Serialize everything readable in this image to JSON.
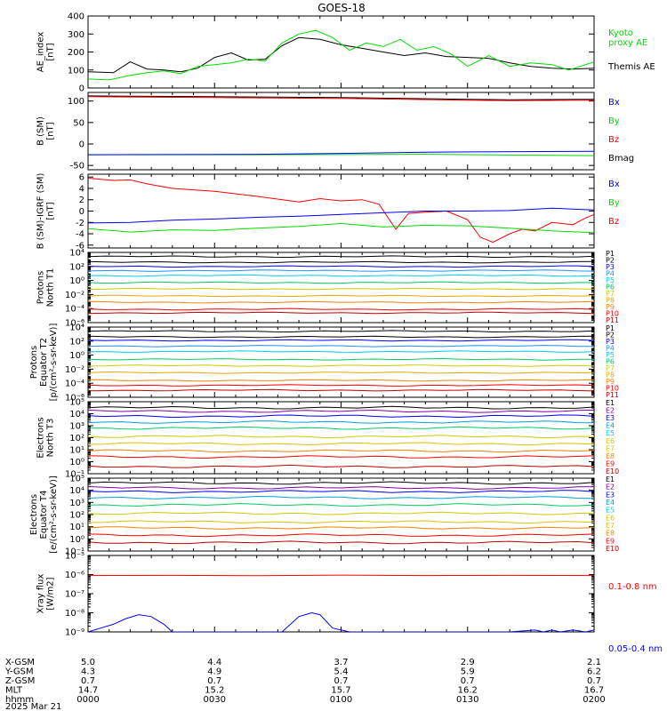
{
  "title": "GOES-18",
  "colors": {
    "black": "#000000",
    "red": "#ff0000",
    "green": "#00dd00",
    "blue": "#0000ff"
  },
  "chart_data": [
    {
      "id": "ae",
      "type": "line",
      "ylabel": [
        "AE_index",
        "[nT]"
      ],
      "ylim": [
        0,
        400
      ],
      "yticks": [
        0,
        100,
        200,
        300,
        400
      ],
      "legend": [
        {
          "text": "Kyoto",
          "color": "#00dd00"
        },
        {
          "text": "proxy AE",
          "color": "#00dd00"
        },
        {
          "text": "Themis AE",
          "color": "#000000"
        }
      ],
      "series": [
        {
          "name": "Themis AE",
          "color": "#000000",
          "x": [
            0,
            6,
            10,
            14,
            18,
            22,
            26,
            30,
            34,
            38,
            42,
            46,
            50,
            55,
            60,
            65,
            70,
            75,
            80,
            85,
            90,
            95,
            100,
            105,
            110,
            115,
            120
          ],
          "values": [
            90,
            85,
            145,
            105,
            100,
            90,
            110,
            170,
            195,
            155,
            160,
            235,
            280,
            270,
            240,
            220,
            200,
            180,
            195,
            175,
            170,
            165,
            140,
            120,
            110,
            105,
            110
          ]
        },
        {
          "name": "Kyoto proxy AE",
          "color": "#00dd00",
          "x": [
            0,
            5,
            10,
            14,
            18,
            22,
            26,
            30,
            34,
            38,
            42,
            46,
            50,
            54,
            58,
            62,
            66,
            70,
            74,
            78,
            82,
            86,
            90,
            95,
            100,
            105,
            110,
            114,
            120
          ],
          "values": [
            50,
            45,
            70,
            85,
            95,
            80,
            120,
            130,
            140,
            160,
            150,
            250,
            300,
            320,
            280,
            210,
            250,
            230,
            270,
            210,
            230,
            190,
            120,
            180,
            120,
            140,
            130,
            100,
            145
          ]
        }
      ]
    },
    {
      "id": "bsm",
      "type": "line",
      "ylabel": [
        "B (SM)",
        "[nT]"
      ],
      "ylim": [
        -60,
        120
      ],
      "yticks": [
        -50,
        0,
        50,
        100
      ],
      "legend": [
        {
          "text": "Bx",
          "color": "#0000ff"
        },
        {
          "text": "By",
          "color": "#00dd00"
        },
        {
          "text": "Bz",
          "color": "#ff0000"
        },
        {
          "text": "Bmag",
          "color": "#000000"
        }
      ],
      "series": [
        {
          "name": "Bmag",
          "color": "#000000",
          "x": [
            0,
            30,
            60,
            90,
            100,
            120
          ],
          "values": [
            112,
            110,
            108,
            104,
            103,
            104
          ]
        },
        {
          "name": "Bz",
          "color": "#ff0000",
          "x": [
            0,
            30,
            60,
            90,
            100,
            120
          ],
          "values": [
            110,
            108,
            106,
            102,
            101,
            102
          ]
        },
        {
          "name": "By",
          "color": "#00dd00",
          "x": [
            0,
            40,
            80,
            120
          ],
          "values": [
            -25,
            -25,
            -24,
            -27
          ]
        },
        {
          "name": "Bx",
          "color": "#0000ff",
          "x": [
            0,
            40,
            60,
            80,
            120
          ],
          "values": [
            -25,
            -24,
            -22,
            -19,
            -17
          ]
        }
      ]
    },
    {
      "id": "bdiff",
      "type": "line",
      "ylabel": [
        "B (SM)-IGRF (SM)",
        "[nT]"
      ],
      "ylim": [
        -6.5,
        6.5
      ],
      "yticks": [
        -6,
        -4,
        -2,
        0,
        2,
        4,
        6
      ],
      "legend": [
        {
          "text": "Bx",
          "color": "#0000ff"
        },
        {
          "text": "By",
          "color": "#00dd00"
        },
        {
          "text": "Bz",
          "color": "#ff0000"
        }
      ],
      "series": [
        {
          "name": "Bz",
          "color": "#ff0000",
          "x": [
            0,
            6,
            10,
            14,
            20,
            30,
            40,
            50,
            55,
            60,
            65,
            69,
            73,
            76,
            80,
            85,
            90,
            93,
            96,
            100,
            103,
            106,
            110,
            115,
            118,
            120
          ],
          "values": [
            5.8,
            5.4,
            5.5,
            4.8,
            4.0,
            3.5,
            2.6,
            1.6,
            2.2,
            1.8,
            2.0,
            1.2,
            -3.2,
            -0.4,
            -0.2,
            0,
            -1.5,
            -4.6,
            -5.5,
            -4.0,
            -3.2,
            -3.5,
            -2.0,
            -2.4,
            -1.2,
            -0.6
          ]
        },
        {
          "name": "By",
          "color": "#00dd00",
          "x": [
            0,
            10,
            20,
            30,
            40,
            50,
            60,
            70,
            80,
            90,
            100,
            110,
            120
          ],
          "values": [
            -3.1,
            -3.7,
            -3.3,
            -3.4,
            -3.0,
            -2.7,
            -2.2,
            -2.8,
            -2.5,
            -2.6,
            -3.0,
            -3.5,
            -3.8
          ]
        },
        {
          "name": "Bx",
          "color": "#0000ff",
          "x": [
            0,
            10,
            20,
            30,
            40,
            50,
            60,
            70,
            80,
            90,
            100,
            110,
            120
          ],
          "values": [
            -2.1,
            -2.0,
            -1.6,
            -1.4,
            -1.1,
            -0.9,
            -0.6,
            -0.3,
            0.0,
            0.0,
            0.1,
            0.5,
            0.2
          ]
        }
      ]
    },
    {
      "id": "p_t1",
      "type": "line",
      "scale": "log",
      "ylabel": [
        "Protons",
        "North T1"
      ],
      "ylim": [
        -6,
        4
      ],
      "yticks": [
        -6,
        -4,
        -2,
        0,
        2,
        4
      ],
      "legend": [
        {
          "text": "P1",
          "color": "#000000"
        },
        {
          "text": "P2",
          "color": "#000000"
        },
        {
          "text": "P3",
          "color": "#0000ff"
        },
        {
          "text": "P4",
          "color": "#2090ff"
        },
        {
          "text": "P5",
          "color": "#00ccee"
        },
        {
          "text": "P6",
          "color": "#00cc60"
        },
        {
          "text": "P7",
          "color": "#cccc00"
        },
        {
          "text": "P8",
          "color": "#e0a800"
        },
        {
          "text": "P9",
          "color": "#ff8000"
        },
        {
          "text": "P10",
          "color": "#ff0000"
        },
        {
          "text": "P11",
          "color": "#c00000"
        }
      ],
      "levels": [
        {
          "name": "P1",
          "color": "#000000",
          "log_value": 3.4
        },
        {
          "name": "P2",
          "color": "#000000",
          "log_value": 2.6
        },
        {
          "name": "P3",
          "color": "#0000ff",
          "log_value": 2.0
        },
        {
          "name": "P4",
          "color": "#2090ff",
          "log_value": 1.4
        },
        {
          "name": "P5",
          "color": "#00ccee",
          "log_value": 0.7
        },
        {
          "name": "P6",
          "color": "#00cc60",
          "log_value": -0.3
        },
        {
          "name": "P7",
          "color": "#cccc00",
          "log_value": -1.2
        },
        {
          "name": "P8",
          "color": "#e0a800",
          "log_value": -2.2
        },
        {
          "name": "P9",
          "color": "#ff8000",
          "log_value": -3.1
        },
        {
          "name": "P10",
          "color": "#ff0000",
          "log_value": -4.1
        },
        {
          "name": "P11",
          "color": "#c00000",
          "log_value": -4.6
        }
      ]
    },
    {
      "id": "p_t2",
      "type": "line",
      "scale": "log",
      "ylabel": [
        "Protons",
        "Equator T2",
        "[p/(cm²-s-sr-keV)]"
      ],
      "ylim": [
        -6,
        4
      ],
      "yticks": [
        -6,
        -4,
        -2,
        0,
        2,
        4
      ],
      "legend": [
        {
          "text": "P1",
          "color": "#000000"
        },
        {
          "text": "P2",
          "color": "#000000"
        },
        {
          "text": "P3",
          "color": "#0000ff"
        },
        {
          "text": "P4",
          "color": "#2090ff"
        },
        {
          "text": "P5",
          "color": "#00ccee"
        },
        {
          "text": "P6",
          "color": "#00cc60"
        },
        {
          "text": "P7",
          "color": "#cccc00"
        },
        {
          "text": "P8",
          "color": "#e0a800"
        },
        {
          "text": "P9",
          "color": "#ff8000"
        },
        {
          "text": "P10",
          "color": "#ff0000"
        },
        {
          "text": "P11",
          "color": "#c00000"
        }
      ],
      "levels": [
        {
          "name": "P1",
          "color": "#000000",
          "log_value": 3.4
        },
        {
          "name": "P2",
          "color": "#000000",
          "log_value": 2.6
        },
        {
          "name": "P3",
          "color": "#0000ff",
          "log_value": 2.1
        },
        {
          "name": "P4",
          "color": "#2090ff",
          "log_value": 1.3
        },
        {
          "name": "P5",
          "color": "#00ccee",
          "log_value": 0.5
        },
        {
          "name": "P6",
          "color": "#00cc60",
          "log_value": -0.6
        },
        {
          "name": "P7",
          "color": "#cccc00",
          "log_value": -1.5
        },
        {
          "name": "P8",
          "color": "#e0a800",
          "log_value": -2.5
        },
        {
          "name": "P9",
          "color": "#ff8000",
          "log_value": -3.6
        },
        {
          "name": "P10",
          "color": "#ff0000",
          "log_value": -4.3
        },
        {
          "name": "P11",
          "color": "#c00000",
          "log_value": -5.0
        }
      ]
    },
    {
      "id": "e_t3",
      "type": "line",
      "scale": "log",
      "ylabel": [
        "Electrons",
        "North T3"
      ],
      "ylim": [
        -1,
        5
      ],
      "yticks": [
        -1,
        0,
        1,
        2,
        3,
        4,
        5
      ],
      "legend": [
        {
          "text": "E1",
          "color": "#000000"
        },
        {
          "text": "E2",
          "color": "#8000a0"
        },
        {
          "text": "E3",
          "color": "#0000ff"
        },
        {
          "text": "E4",
          "color": "#00a0e0"
        },
        {
          "text": "E5",
          "color": "#00ccee"
        },
        {
          "text": "E6",
          "color": "#cccc00"
        },
        {
          "text": "E7",
          "color": "#e0c000"
        },
        {
          "text": "E8",
          "color": "#ff8000"
        },
        {
          "text": "E9",
          "color": "#ff0000"
        },
        {
          "text": "E10",
          "color": "#c00000"
        }
      ],
      "levels": [
        {
          "name": "E1",
          "color": "#000000",
          "log_value": 4.5
        },
        {
          "name": "E2",
          "color": "#8000a0",
          "log_value": 4.2
        },
        {
          "name": "E3",
          "color": "#0000ff",
          "log_value": 3.8
        },
        {
          "name": "E4",
          "color": "#00a0e0",
          "log_value": 3.3
        },
        {
          "name": "E5",
          "color": "#00cc60",
          "log_value": 2.8
        },
        {
          "name": "E6",
          "color": "#cccc00",
          "log_value": 2.1
        },
        {
          "name": "E7",
          "color": "#e0c000",
          "log_value": 1.5
        },
        {
          "name": "E8",
          "color": "#ff8000",
          "log_value": 0.9
        },
        {
          "name": "E9",
          "color": "#ff0000",
          "log_value": 0.4
        },
        {
          "name": "E10",
          "color": "#c00000",
          "log_value": -0.4
        }
      ]
    },
    {
      "id": "e_t4",
      "type": "line",
      "scale": "log",
      "ylabel": [
        "Electrons",
        "Equator T4",
        "[e/(cm²-s-sr-keV)]"
      ],
      "ylim": [
        -1,
        5
      ],
      "yticks": [
        -1,
        0,
        1,
        2,
        3,
        4,
        5
      ],
      "legend": [
        {
          "text": "E1",
          "color": "#000000"
        },
        {
          "text": "E2",
          "color": "#8000a0"
        },
        {
          "text": "E3",
          "color": "#0000ff"
        },
        {
          "text": "E4",
          "color": "#00a0e0"
        },
        {
          "text": "E5",
          "color": "#00ccee"
        },
        {
          "text": "E6",
          "color": "#cccc00"
        },
        {
          "text": "E7",
          "color": "#e0c000"
        },
        {
          "text": "E8",
          "color": "#ff8000"
        },
        {
          "text": "E9",
          "color": "#ff0000"
        },
        {
          "text": "E10",
          "color": "#c00000"
        }
      ],
      "levels": [
        {
          "name": "E1",
          "color": "#000000",
          "log_value": 4.6
        },
        {
          "name": "E2",
          "color": "#8000a0",
          "log_value": 4.2
        },
        {
          "name": "E3",
          "color": "#0000ff",
          "log_value": 3.9
        },
        {
          "name": "E4",
          "color": "#00a0e0",
          "log_value": 3.4
        },
        {
          "name": "E5",
          "color": "#00cc60",
          "log_value": 2.8
        },
        {
          "name": "E6",
          "color": "#cccc00",
          "log_value": 2.1
        },
        {
          "name": "E7",
          "color": "#e0c000",
          "log_value": 1.4
        },
        {
          "name": "E8",
          "color": "#ff8000",
          "log_value": 0.9
        },
        {
          "name": "E9",
          "color": "#ff0000",
          "log_value": 0.3
        },
        {
          "name": "E10",
          "color": "#c00000",
          "log_value": -0.3
        }
      ]
    },
    {
      "id": "xray",
      "type": "line",
      "scale": "log",
      "ylabel": [
        "Xray flux",
        "[W/m2]"
      ],
      "ylim": [
        -9,
        -5
      ],
      "yticks": [
        -9,
        -8,
        -7,
        -6,
        -5
      ],
      "legend": [
        {
          "text": "0.1-0.8 nm",
          "color": "#ff0000"
        },
        {
          "text": "0.05-0.4 nm",
          "color": "#0000ff"
        }
      ],
      "series": [
        {
          "name": "0.1-0.8 nm",
          "color": "#ff0000",
          "x": [
            0,
            20,
            40,
            60,
            80,
            100,
            120
          ],
          "values": [
            -6.05,
            -6.04,
            -6.06,
            -6.03,
            -6.05,
            -6.04,
            -6.05
          ]
        },
        {
          "name": "0.05-0.4 nm",
          "color": "#0000ff",
          "x": [
            0,
            3,
            6,
            9,
            12,
            15,
            18,
            20,
            22,
            26,
            30,
            34,
            38,
            42,
            46,
            50,
            53,
            55,
            58,
            62,
            70,
            80,
            90,
            100,
            106,
            108,
            110,
            112,
            115,
            118,
            120
          ],
          "values": [
            -9.0,
            -8.8,
            -8.6,
            -8.3,
            -8.1,
            -8.2,
            -8.6,
            -9.0,
            -9.0,
            -9.0,
            -9.0,
            -9.0,
            -9.0,
            -9.0,
            -9.0,
            -8.2,
            -8.0,
            -8.1,
            -8.8,
            -9.0,
            -9.0,
            -9.0,
            -9.0,
            -9.0,
            -8.9,
            -9.0,
            -8.9,
            -9.0,
            -8.9,
            -9.0,
            -8.9
          ]
        }
      ]
    }
  ],
  "x_axis": {
    "row_labels": [
      "X-GSM",
      "Y-GSM",
      "Z-GSM",
      "MLT",
      "hhmm",
      "2025 Mar 21"
    ],
    "columns": [
      {
        "x": 0,
        "values": [
          "5.0",
          "4.3",
          "0.7",
          "14.7",
          "0000"
        ]
      },
      {
        "x": 30,
        "values": [
          "4.4",
          "4.9",
          "0.7",
          "15.2",
          "0030"
        ]
      },
      {
        "x": 60,
        "values": [
          "3.7",
          "5.4",
          "0.7",
          "15.7",
          "0100"
        ]
      },
      {
        "x": 90,
        "values": [
          "2.9",
          "5.9",
          "0.7",
          "16.2",
          "0130"
        ]
      },
      {
        "x": 120,
        "values": [
          "2.1",
          "6.2",
          "0.7",
          "16.7",
          "0200"
        ]
      }
    ]
  }
}
